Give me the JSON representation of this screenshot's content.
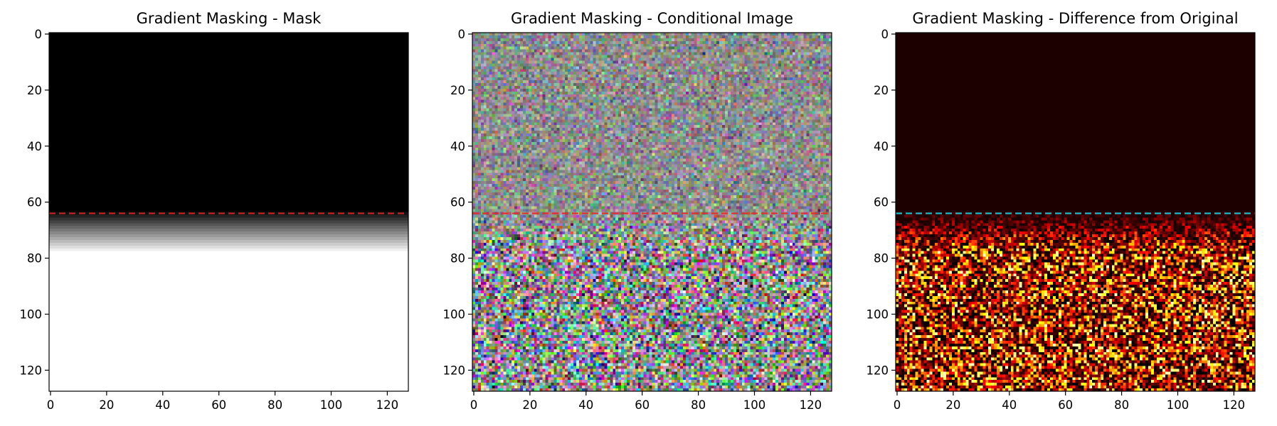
{
  "chart_data": [
    {
      "type": "heatmap",
      "title": "Gradient Masking - Mask",
      "colormap": "gray",
      "x_ticks": [
        0,
        20,
        40,
        60,
        80,
        100,
        120
      ],
      "y_ticks": [
        0,
        20,
        40,
        60,
        80,
        100,
        120
      ],
      "xlim": [
        -0.5,
        127.5
      ],
      "ylim": [
        127.5,
        -0.5
      ],
      "image_size": [
        128,
        128
      ],
      "mask_rows": {
        "zero_until_row": 64,
        "ramp_end_row": 78,
        "value_top": 0,
        "value_bottom": 1
      },
      "hline": {
        "y": 64,
        "color": "#cc1f1f",
        "style": "dashed"
      }
    },
    {
      "type": "heatmap",
      "title": "Gradient Masking - Conditional Image",
      "colormap": "rgb-noise",
      "x_ticks": [
        0,
        20,
        40,
        60,
        80,
        100,
        120
      ],
      "y_ticks": [
        0,
        20,
        40,
        60,
        80,
        100,
        120
      ],
      "xlim": [
        -0.5,
        127.5
      ],
      "ylim": [
        127.5,
        -0.5
      ],
      "image_size": [
        128,
        128
      ],
      "noise": {
        "top_spread": 0.13,
        "bottom_spread": 0.3,
        "transition_start_row": 64,
        "transition_end_row": 78
      },
      "hline": {
        "y": 64,
        "color": "#e03030",
        "style": "dashed"
      }
    },
    {
      "type": "heatmap",
      "title": "Gradient Masking - Difference from Original",
      "colormap": "hot",
      "x_ticks": [
        0,
        20,
        40,
        60,
        80,
        100,
        120
      ],
      "y_ticks": [
        0,
        20,
        40,
        60,
        80,
        100,
        120
      ],
      "xlim": [
        -0.5,
        127.5
      ],
      "ylim": [
        127.5,
        -0.5
      ],
      "image_size": [
        128,
        128
      ],
      "difference": {
        "top_value": 0.04,
        "transition_start_row": 64,
        "transition_end_row": 78
      },
      "hline": {
        "y": 64,
        "color": "#17bdc9",
        "style": "dashed"
      }
    }
  ]
}
